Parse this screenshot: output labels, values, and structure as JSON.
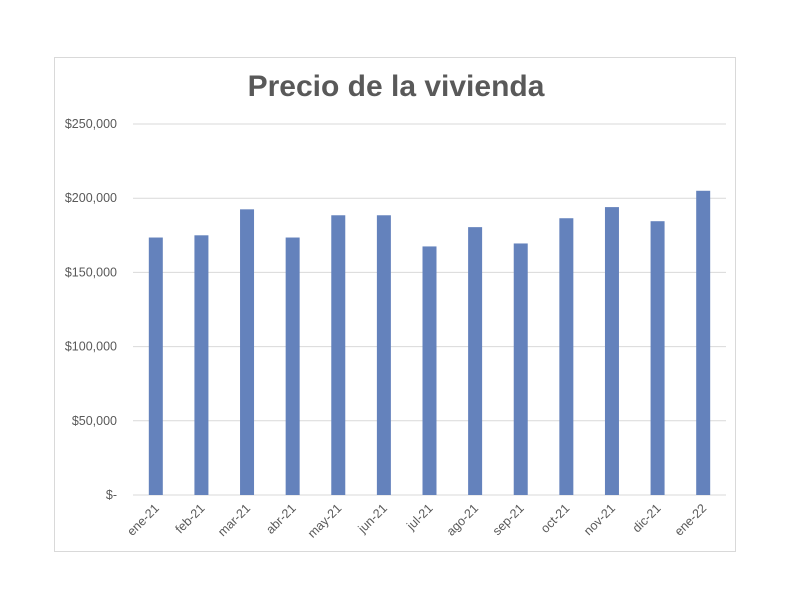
{
  "chart_data": {
    "type": "bar",
    "title": "Precio de la vivienda",
    "xlabel": "",
    "ylabel": "",
    "categories": [
      "ene-21",
      "feb-21",
      "mar-21",
      "abr-21",
      "may-21",
      "jun-21",
      "jul-21",
      "ago-21",
      "sep-21",
      "oct-21",
      "nov-21",
      "dic-21",
      "ene-22"
    ],
    "values": [
      173500,
      175000,
      192500,
      173500,
      188500,
      188500,
      167500,
      180500,
      169500,
      186500,
      194000,
      184500,
      205000
    ],
    "ylim": [
      0,
      250000
    ],
    "yticks": [
      0,
      50000,
      100000,
      150000,
      200000,
      250000
    ],
    "ytick_labels": [
      "$-",
      "$50,000",
      "$100,000",
      "$150,000",
      "$200,000",
      "$250,000"
    ],
    "grid": true,
    "legend": "none",
    "bar_color": "#6482bc",
    "grid_color": "#d9d9d9"
  }
}
